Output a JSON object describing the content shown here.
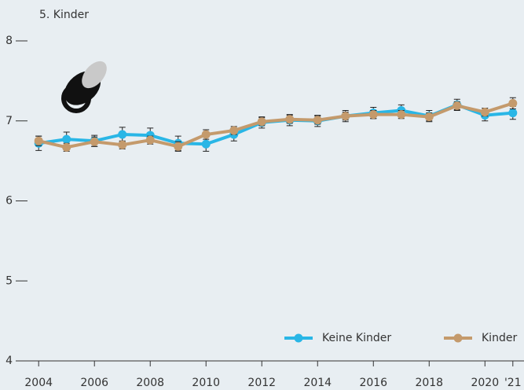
{
  "chart_data": {
    "type": "line",
    "title": "5. Kinder",
    "x": [
      2004,
      2005,
      2006,
      2007,
      2008,
      2009,
      2010,
      2011,
      2012,
      2013,
      2014,
      2015,
      2016,
      2017,
      2018,
      2019,
      2020,
      2021
    ],
    "series": [
      {
        "name": "Keine Kinder",
        "color": "#29b6e6",
        "values": [
          6.72,
          6.77,
          6.75,
          6.83,
          6.82,
          6.72,
          6.71,
          6.83,
          6.98,
          7.01,
          7.0,
          7.06,
          7.1,
          7.13,
          7.06,
          7.2,
          7.07,
          7.1
        ],
        "errors": [
          0.09,
          0.09,
          0.07,
          0.09,
          0.09,
          0.09,
          0.09,
          0.08,
          0.07,
          0.07,
          0.07,
          0.07,
          0.07,
          0.07,
          0.07,
          0.07,
          0.07,
          0.08
        ]
      },
      {
        "name": "Kinder",
        "color": "#c49a6c",
        "values": [
          6.75,
          6.67,
          6.74,
          6.7,
          6.76,
          6.68,
          6.83,
          6.88,
          6.99,
          7.02,
          7.01,
          7.06,
          7.08,
          7.08,
          7.05,
          7.19,
          7.11,
          7.22
        ],
        "errors": [
          0.06,
          0.05,
          0.06,
          0.05,
          0.05,
          0.06,
          0.06,
          0.05,
          0.05,
          0.05,
          0.05,
          0.05,
          0.05,
          0.05,
          0.05,
          0.05,
          0.05,
          0.07
        ]
      }
    ],
    "xlim": [
      2003.6,
      2021.4
    ],
    "ylim": [
      4,
      8
    ],
    "yticks": [
      4,
      5,
      6,
      7,
      8
    ],
    "xticks": [
      2004,
      2006,
      2008,
      2010,
      2012,
      2014,
      2016,
      2018,
      2020,
      {
        "value": 2021,
        "label": "'21"
      }
    ],
    "legend": "lower right"
  }
}
